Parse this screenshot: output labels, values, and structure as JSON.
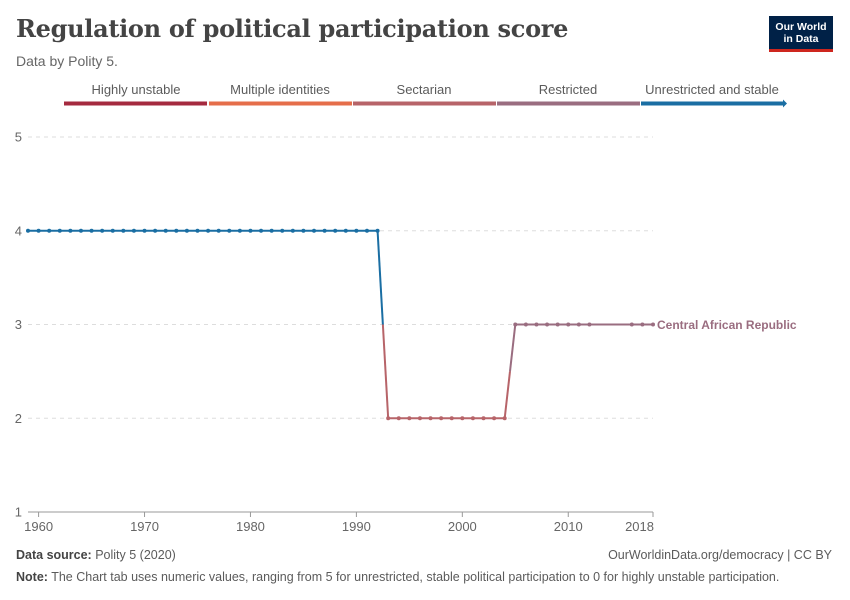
{
  "header": {
    "title": "Regulation of political participation score",
    "subtitle": "Data by Polity 5."
  },
  "logo": {
    "line1": "Our World",
    "line2": "in Data"
  },
  "footer": {
    "source_label": "Data source:",
    "source_text": "Polity 5 (2020)",
    "url_text": "OurWorldinData.org/democracy | CC BY",
    "note_label": "Note:",
    "note_text": "The Chart tab uses numeric values, ranging from 5 for unrestricted, stable political participation to 0 for highly unstable participation."
  },
  "colors": {
    "unrestricted": "#1a6ea3",
    "restricted": "#9a6d80",
    "sectarian": "#b76469",
    "multiple": "#e56e4a",
    "highly_unstable": "#a52a3f",
    "grid": "#dddddd",
    "tick": "#666666"
  },
  "chart_data": {
    "type": "line",
    "title": "Regulation of political participation score",
    "xlim": [
      1959,
      2018
    ],
    "ylim": [
      1,
      5
    ],
    "x_ticks": [
      "1960",
      "1970",
      "1980",
      "1990",
      "2000",
      "2010",
      "2018"
    ],
    "y_ticks": [
      "1",
      "2",
      "3",
      "4",
      "5"
    ],
    "grid": "horizontal-dashed",
    "legend": {
      "placement": "top",
      "type": "color-bar",
      "items": [
        {
          "label": "Highly unstable",
          "color": "#a52a3f"
        },
        {
          "label": "Multiple identities",
          "color": "#e56e4a"
        },
        {
          "label": "Sectarian",
          "color": "#b76469"
        },
        {
          "label": "Restricted",
          "color": "#9a6d80"
        },
        {
          "label": "Unrestricted and stable",
          "color": "#1a6ea3"
        }
      ]
    },
    "series": [
      {
        "name": "Central African Republic",
        "x": [
          1959,
          1960,
          1961,
          1962,
          1963,
          1964,
          1965,
          1966,
          1967,
          1968,
          1969,
          1970,
          1971,
          1972,
          1973,
          1974,
          1975,
          1976,
          1977,
          1978,
          1979,
          1980,
          1981,
          1982,
          1983,
          1984,
          1985,
          1986,
          1987,
          1988,
          1989,
          1990,
          1991,
          1992,
          1993,
          1994,
          1995,
          1996,
          1997,
          1998,
          1999,
          2000,
          2001,
          2002,
          2003,
          2004,
          2005,
          2006,
          2007,
          2008,
          2009,
          2010,
          2011,
          2012,
          2016,
          2017,
          2018
        ],
        "y": [
          4,
          4,
          4,
          4,
          4,
          4,
          4,
          4,
          4,
          4,
          4,
          4,
          4,
          4,
          4,
          4,
          4,
          4,
          4,
          4,
          4,
          4,
          4,
          4,
          4,
          4,
          4,
          4,
          4,
          4,
          4,
          4,
          4,
          4,
          2,
          2,
          2,
          2,
          2,
          2,
          2,
          2,
          2,
          2,
          2,
          2,
          3,
          3,
          3,
          3,
          3,
          3,
          3,
          3,
          3,
          3,
          3
        ]
      }
    ]
  }
}
